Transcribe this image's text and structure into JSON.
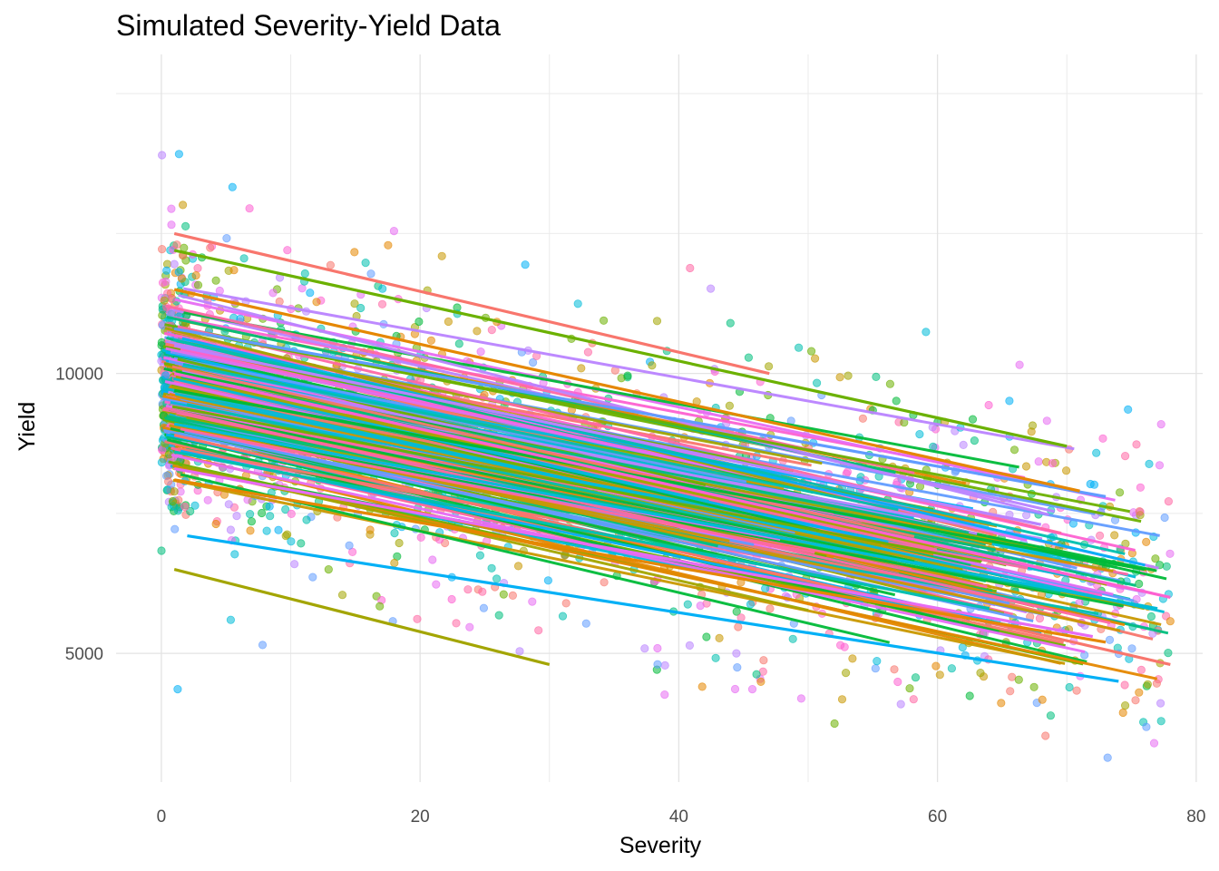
{
  "chart_data": {
    "type": "scatter",
    "title": "Simulated Severity-Yield Data",
    "xlabel": "Severity",
    "ylabel": "Yield",
    "xlim": [
      -3.5,
      80.5
    ],
    "ylim": [
      2700,
      15700
    ],
    "x_ticks": [
      0,
      20,
      40,
      60,
      80
    ],
    "x_tick_labels": [
      "0",
      "20",
      "40",
      "60",
      "80"
    ],
    "y_ticks": [
      5000,
      10000
    ],
    "y_tick_labels": [
      "5000",
      "10000"
    ],
    "grid": true,
    "legend": "none",
    "palette": [
      "#F8766D",
      "#E58700",
      "#C99800",
      "#A3A500",
      "#6BB100",
      "#00BA38",
      "#00BF7D",
      "#00C0AF",
      "#00BCD8",
      "#00B0F6",
      "#619CFF",
      "#B983FF",
      "#E76BF3",
      "#FD61D1",
      "#FF67A4"
    ],
    "approx_yield_at_zero": 9800,
    "approx_yield_at_78": 6000,
    "approx_point_count": 2000,
    "fitted_lines_approx": [
      {
        "x": [
          1,
          47
        ],
        "y": [
          12500,
          10000
        ],
        "color": "#F8766D"
      },
      {
        "x": [
          1,
          70
        ],
        "y": [
          12200,
          8700
        ],
        "color": "#6BB100"
      },
      {
        "x": [
          1,
          30
        ],
        "y": [
          6500,
          4800
        ],
        "color": "#A3A500"
      },
      {
        "x": [
          2,
          74
        ],
        "y": [
          7100,
          4500
        ],
        "color": "#00B0F6"
      },
      {
        "x": [
          1,
          78
        ],
        "y": [
          8900,
          4800
        ],
        "color": "#F8766D"
      },
      {
        "x": [
          1,
          73
        ],
        "y": [
          10800,
          7800
        ],
        "color": "#619CFF"
      },
      {
        "x": [
          1,
          71
        ],
        "y": [
          11500,
          7900
        ],
        "color": "#E58700"
      },
      {
        "x": [
          1,
          76
        ],
        "y": [
          9700,
          6500
        ],
        "color": "#00BA38"
      },
      {
        "x": [
          1,
          78
        ],
        "y": [
          10000,
          6000
        ],
        "color": "#FD61D1"
      },
      {
        "x": [
          1,
          77
        ],
        "y": [
          9100,
          5800
        ],
        "color": "#00BCD8"
      },
      {
        "x": [
          1,
          73
        ],
        "y": [
          8100,
          5200
        ],
        "color": "#E58700"
      },
      {
        "x": [
          1,
          72
        ],
        "y": [
          8300,
          5300
        ],
        "color": "#E76BF3"
      },
      {
        "x": [
          1,
          64
        ],
        "y": [
          8600,
          5800
        ],
        "color": "#00C0AF"
      },
      {
        "x": [
          1,
          68
        ],
        "y": [
          10500,
          7300
        ],
        "color": "#B983FF"
      }
    ]
  }
}
